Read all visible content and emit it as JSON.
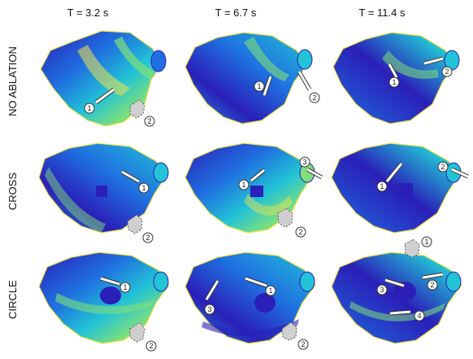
{
  "columns": [
    {
      "label": "T = 3.2 s"
    },
    {
      "label": "T = 6.7 s"
    },
    {
      "label": "T = 11.4 s"
    }
  ],
  "rows": [
    {
      "label": "NO ABLATION"
    },
    {
      "label": "CROSS"
    },
    {
      "label": "CIRCLE"
    }
  ],
  "colors": {
    "deep_blue": "#2a1fb8",
    "blue": "#1f6fe0",
    "cyan": "#22c3d6",
    "green": "#7fe07a",
    "yellow": "#f3e44a",
    "arrow_white": "#ffffff",
    "arrow_outline": "#333333",
    "dashed_arrow_fill": "#cfcfcf"
  },
  "panels": [
    {
      "row": 0,
      "col": 0,
      "arrows": [
        {
          "num": "1",
          "style": "solid"
        },
        {
          "num": "2",
          "style": "dashed"
        }
      ]
    },
    {
      "row": 0,
      "col": 1,
      "arrows": [
        {
          "num": "1",
          "style": "solid"
        },
        {
          "num": "2",
          "style": "solid"
        }
      ]
    },
    {
      "row": 0,
      "col": 2,
      "arrows": [
        {
          "num": "1",
          "style": "solid"
        },
        {
          "num": "2",
          "style": "solid"
        }
      ]
    },
    {
      "row": 1,
      "col": 0,
      "arrows": [
        {
          "num": "1",
          "style": "solid"
        },
        {
          "num": "2",
          "style": "dashed"
        }
      ]
    },
    {
      "row": 1,
      "col": 1,
      "arrows": [
        {
          "num": "1",
          "style": "solid"
        },
        {
          "num": "3",
          "style": "solid"
        },
        {
          "num": "2",
          "style": "dashed"
        }
      ]
    },
    {
      "row": 1,
      "col": 2,
      "arrows": [
        {
          "num": "1",
          "style": "solid"
        },
        {
          "num": "2",
          "style": "solid"
        }
      ]
    },
    {
      "row": 2,
      "col": 0,
      "arrows": [
        {
          "num": "1",
          "style": "solid"
        },
        {
          "num": "2",
          "style": "dashed"
        }
      ]
    },
    {
      "row": 2,
      "col": 1,
      "arrows": [
        {
          "num": "1",
          "style": "solid"
        },
        {
          "num": "3",
          "style": "solid"
        },
        {
          "num": "2",
          "style": "dashed"
        }
      ]
    },
    {
      "row": 2,
      "col": 2,
      "arrows": [
        {
          "num": "1",
          "style": "dashed"
        },
        {
          "num": "2",
          "style": "solid"
        },
        {
          "num": "3",
          "style": "solid"
        },
        {
          "num": "4",
          "style": "solid"
        }
      ]
    }
  ]
}
